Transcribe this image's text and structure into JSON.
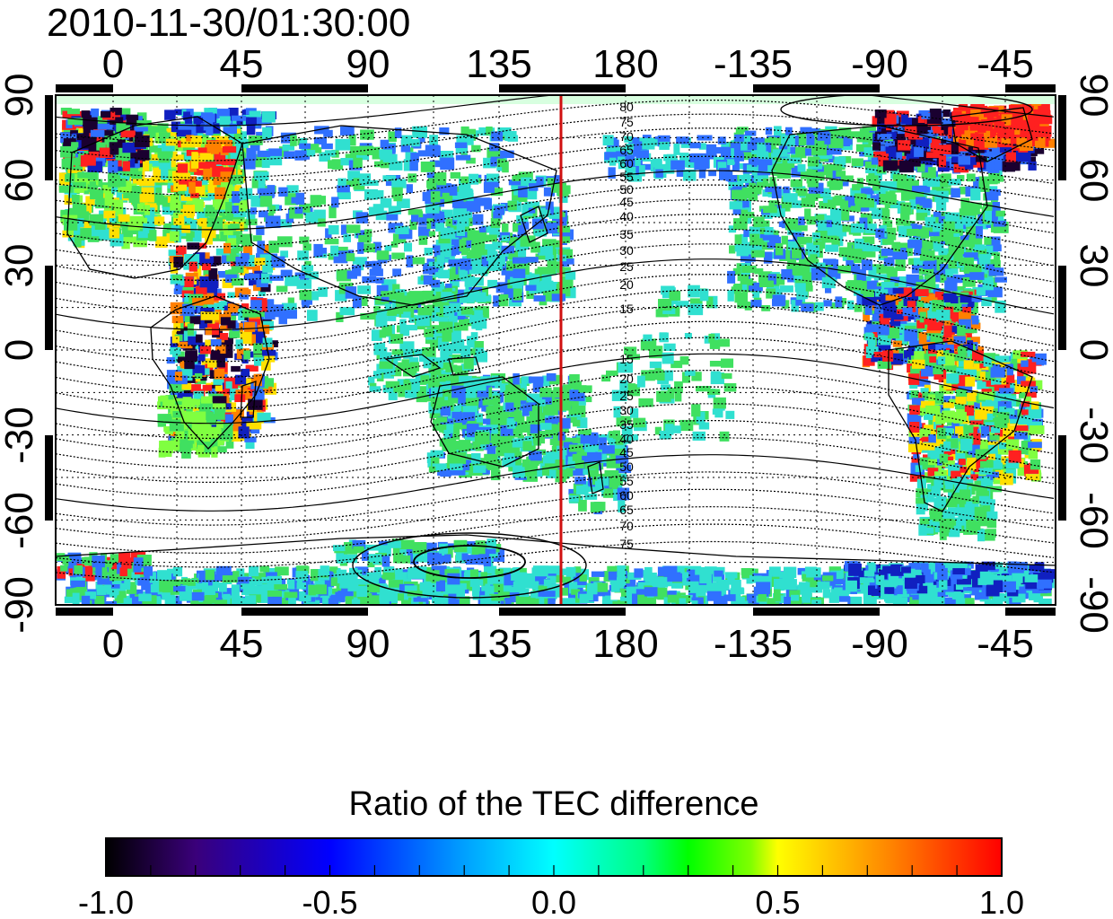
{
  "title": "2010-11-30/01:30:00",
  "axes": {
    "x_tick_labels": [
      "0",
      "45",
      "90",
      "135",
      "180",
      "-135",
      "-90",
      "-45"
    ],
    "y_tick_labels_left": [
      "90",
      "60",
      "30",
      "0",
      "-30",
      "-60",
      "-90"
    ],
    "y_tick_labels_right": [
      "90",
      "60",
      "30",
      "0",
      "-30",
      "-60",
      "-90"
    ]
  },
  "contours": {
    "north_labels": [
      "80",
      "75",
      "70",
      "65",
      "60",
      "55",
      "50",
      "45",
      "40",
      "35",
      "30",
      "25",
      "20",
      "15"
    ],
    "south_labels": [
      "15",
      "20",
      "25",
      "30",
      "35",
      "40",
      "45",
      "50",
      "55",
      "60",
      "65",
      "70",
      "75"
    ]
  },
  "terminator_longitude": 157,
  "colorbar": {
    "title": "Ratio of the TEC difference",
    "tick_labels": [
      "-1.0",
      "-0.5",
      "0.0",
      "0.5",
      "1.0"
    ],
    "colors": [
      "#000000",
      "#3a007a",
      "#0000ff",
      "#00a0ff",
      "#00ffff",
      "#00ff80",
      "#00ff00",
      "#80ff00",
      "#ffff00",
      "#ff8000",
      "#ff0000"
    ]
  }
}
